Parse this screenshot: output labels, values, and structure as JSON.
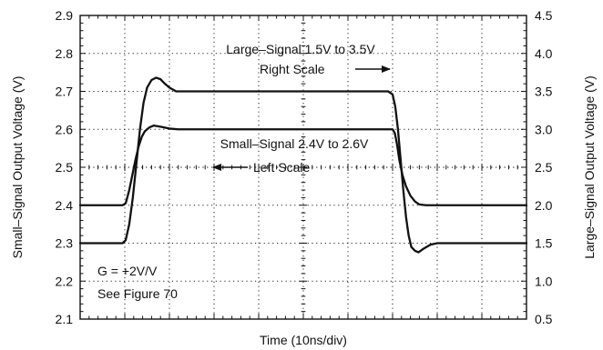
{
  "chart_data": {
    "type": "line",
    "xlabel": "Time (10ns/div)",
    "ylabel_left": "Small–Signal Output Voltage (V)",
    "ylabel_right": "Large–Signal Output Voltage (V)",
    "x_divisions": 10,
    "ylim_left": [
      2.1,
      2.9
    ],
    "yticks_left": [
      "2.1",
      "2.2",
      "2.3",
      "2.4",
      "2.5",
      "2.6",
      "2.7",
      "2.8",
      "2.9"
    ],
    "ylim_right": [
      0.5,
      4.5
    ],
    "yticks_right": [
      "0.5",
      "1.0",
      "1.5",
      "2.0",
      "2.5",
      "3.0",
      "3.5",
      "4.0",
      "4.5"
    ],
    "grid": "dotted",
    "series": [
      {
        "name": "Large–Signal 1.5V to 3.5V",
        "axis": "right",
        "x": [
          0.0,
          0.95,
          1.02,
          1.1,
          1.18,
          1.26,
          1.34,
          1.42,
          1.5,
          1.6,
          1.7,
          1.8,
          1.9,
          2.0,
          2.15,
          2.3,
          2.45,
          3.0,
          5.0,
          6.6,
          6.9,
          7.0,
          7.06,
          7.12,
          7.18,
          7.24,
          7.3,
          7.36,
          7.42,
          7.5,
          7.58,
          7.7,
          7.85,
          8.0,
          8.2,
          10.0
        ],
        "y": [
          1.5,
          1.5,
          1.54,
          1.75,
          2.1,
          2.55,
          3.0,
          3.35,
          3.55,
          3.65,
          3.68,
          3.66,
          3.6,
          3.55,
          3.5,
          3.5,
          3.5,
          3.5,
          3.5,
          3.5,
          3.5,
          3.46,
          3.3,
          3.0,
          2.6,
          2.2,
          1.85,
          1.6,
          1.45,
          1.4,
          1.38,
          1.43,
          1.48,
          1.5,
          1.5,
          1.5
        ]
      },
      {
        "name": "Small–Signal 2.4V to 2.6V",
        "axis": "left",
        "x": [
          0.0,
          0.95,
          1.02,
          1.1,
          1.17,
          1.24,
          1.31,
          1.38,
          1.45,
          1.55,
          1.65,
          1.8,
          2.0,
          2.2,
          3.0,
          5.0,
          6.8,
          7.0,
          7.05,
          7.1,
          7.15,
          7.22,
          7.3,
          7.4,
          7.5,
          7.6,
          7.75,
          7.9,
          8.1,
          10.0
        ],
        "y": [
          2.4,
          2.4,
          2.405,
          2.44,
          2.48,
          2.52,
          2.555,
          2.58,
          2.595,
          2.605,
          2.61,
          2.607,
          2.602,
          2.6,
          2.6,
          2.6,
          2.6,
          2.6,
          2.59,
          2.56,
          2.52,
          2.48,
          2.45,
          2.425,
          2.41,
          2.402,
          2.4,
          2.4,
          2.4,
          2.4
        ]
      }
    ],
    "annotations": {
      "large_signal_label": "Large–Signal 1.5V to 3.5V",
      "right_scale": "Right Scale",
      "small_signal_label": "Small–Signal 2.4V to 2.6V",
      "left_scale": "Left Scale",
      "gain": "G = +2V/V",
      "figure_ref": "See Figure 70"
    }
  }
}
